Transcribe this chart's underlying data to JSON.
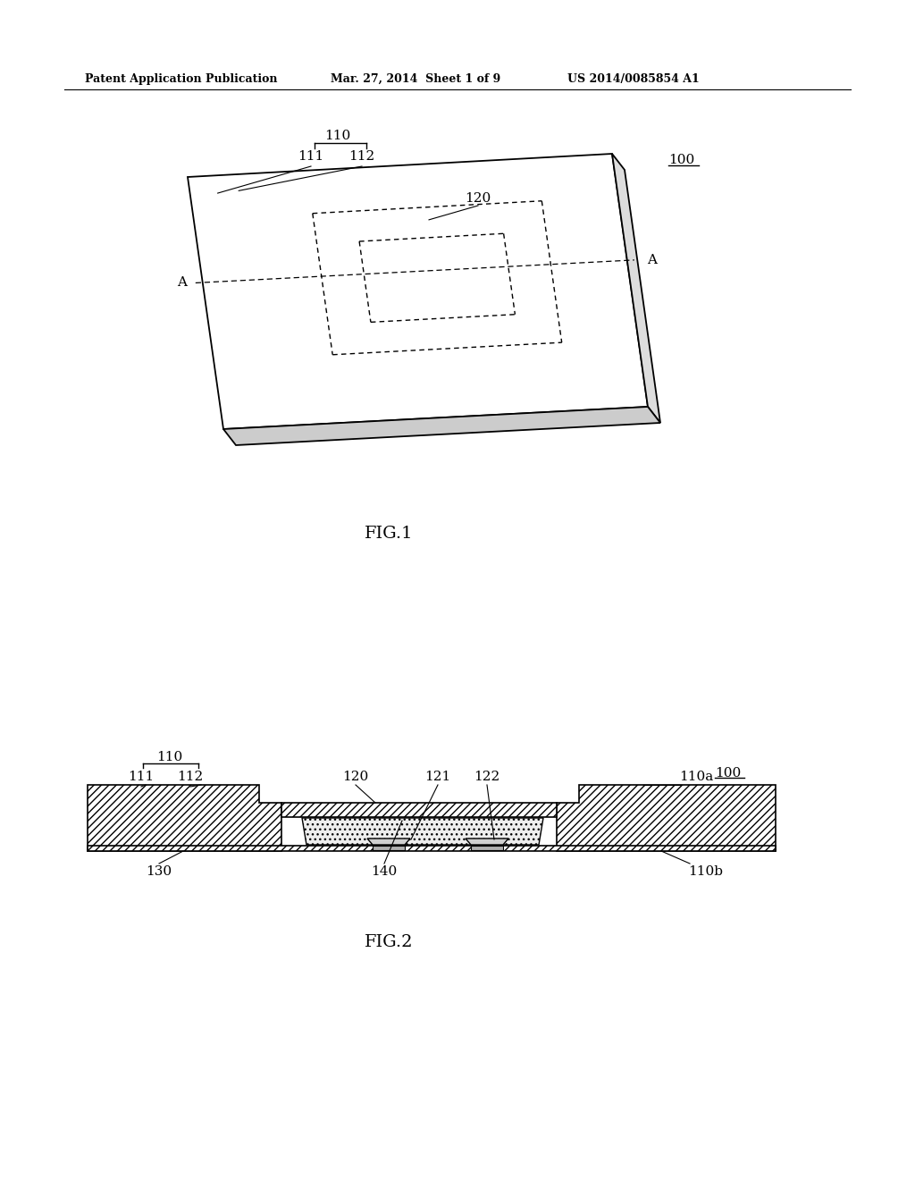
{
  "background_color": "#ffffff",
  "header_left": "Patent Application Publication",
  "header_mid": "Mar. 27, 2014  Sheet 1 of 9",
  "header_right": "US 2014/0085854 A1",
  "fig1_label": "FIG.1",
  "fig2_label": "FIG.2",
  "ref_100_fig1": "100",
  "ref_110_fig1": "110",
  "ref_111_fig1": "111",
  "ref_112_fig1": "112",
  "ref_120_fig1": "120",
  "ref_100_fig2": "100",
  "ref_110_fig2": "110",
  "ref_111_fig2": "111",
  "ref_112_fig2": "112",
  "ref_120_fig2": "120",
  "ref_121_fig2": "121",
  "ref_122_fig2": "122",
  "ref_110a_fig2": "110a",
  "ref_110b_fig2": "110b",
  "ref_130_fig2": "130",
  "ref_140_fig2": "140"
}
